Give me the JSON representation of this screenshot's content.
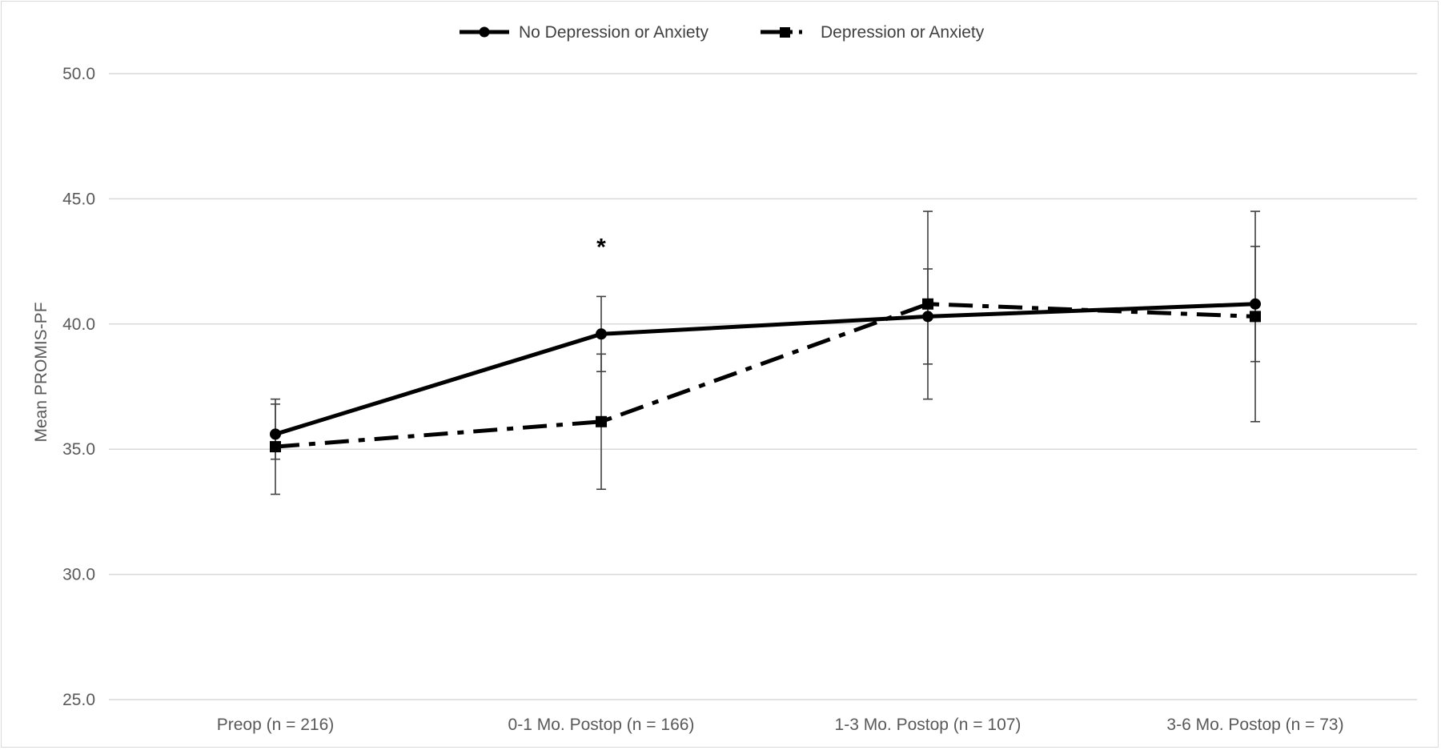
{
  "chart_data": {
    "type": "line",
    "title": "",
    "xlabel": "",
    "ylabel": "Mean PROMIS-PF",
    "categories": [
      "Preop (n = 216)",
      "0-1 Mo. Postop (n = 166)",
      "1-3 Mo. Postop (n = 107)",
      "3-6 Mo. Postop (n = 73)"
    ],
    "ylim": [
      25.0,
      50.0
    ],
    "yticks": [
      "25.0",
      "30.0",
      "35.0",
      "40.0",
      "45.0",
      "50.0"
    ],
    "grid": true,
    "legend_position": "top-center",
    "series": [
      {
        "name": "No Depression or Anxiety",
        "style": "solid",
        "marker": "circle",
        "color": "#000000",
        "values": [
          35.6,
          39.6,
          40.3,
          40.8
        ],
        "error_low": [
          34.6,
          38.1,
          37.0,
          38.5
        ],
        "error_high": [
          36.8,
          41.1,
          42.2,
          43.1
        ]
      },
      {
        "name": "Depression or Anxiety",
        "style": "dash-dot",
        "marker": "square",
        "color": "#000000",
        "values": [
          35.1,
          36.1,
          40.8,
          40.3
        ],
        "error_low": [
          33.2,
          33.4,
          38.4,
          36.1
        ],
        "error_high": [
          37.0,
          38.8,
          44.5,
          44.5
        ]
      }
    ],
    "annotations": [
      {
        "text": "*",
        "category_index": 1,
        "y": 43.2
      }
    ]
  }
}
